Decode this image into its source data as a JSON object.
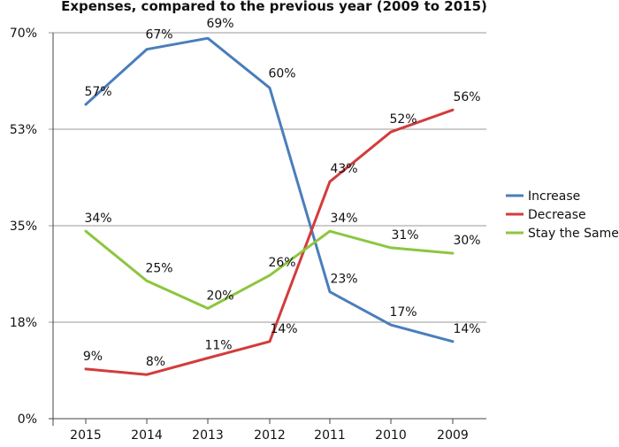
{
  "chart_data": {
    "type": "line",
    "title": "Expenses, compared to the previous year (2009 to 2015)",
    "categories": [
      "2015",
      "2014",
      "2013",
      "2012",
      "2011",
      "2010",
      "2009"
    ],
    "y_tick_labels": [
      "0%",
      "18%",
      "35%",
      "53%",
      "70%"
    ],
    "y_ticks": [
      0,
      17.5,
      35,
      52.5,
      70
    ],
    "ylim": [
      0,
      70
    ],
    "grid": true,
    "legend_position": "right",
    "series": [
      {
        "name": "Increase",
        "color": "#4a7ebb",
        "values": [
          57,
          67,
          69,
          60,
          23,
          17,
          14
        ],
        "labels": [
          "57%",
          "67%",
          "69%",
          "60%",
          "23%",
          "17%",
          "14%"
        ]
      },
      {
        "name": "Decrease",
        "color": "#d33c3c",
        "values": [
          9,
          8,
          11,
          14,
          43,
          52,
          56
        ],
        "labels": [
          "9%",
          "8%",
          "11%",
          "14%",
          "43%",
          "52%",
          "56%"
        ]
      },
      {
        "name": "Stay the Same",
        "color": "#8cc63f",
        "values": [
          34,
          25,
          20,
          26,
          34,
          31,
          30
        ],
        "labels": [
          "34%",
          "25%",
          "20%",
          "26%",
          "34%",
          "31%",
          "30%"
        ]
      }
    ]
  }
}
